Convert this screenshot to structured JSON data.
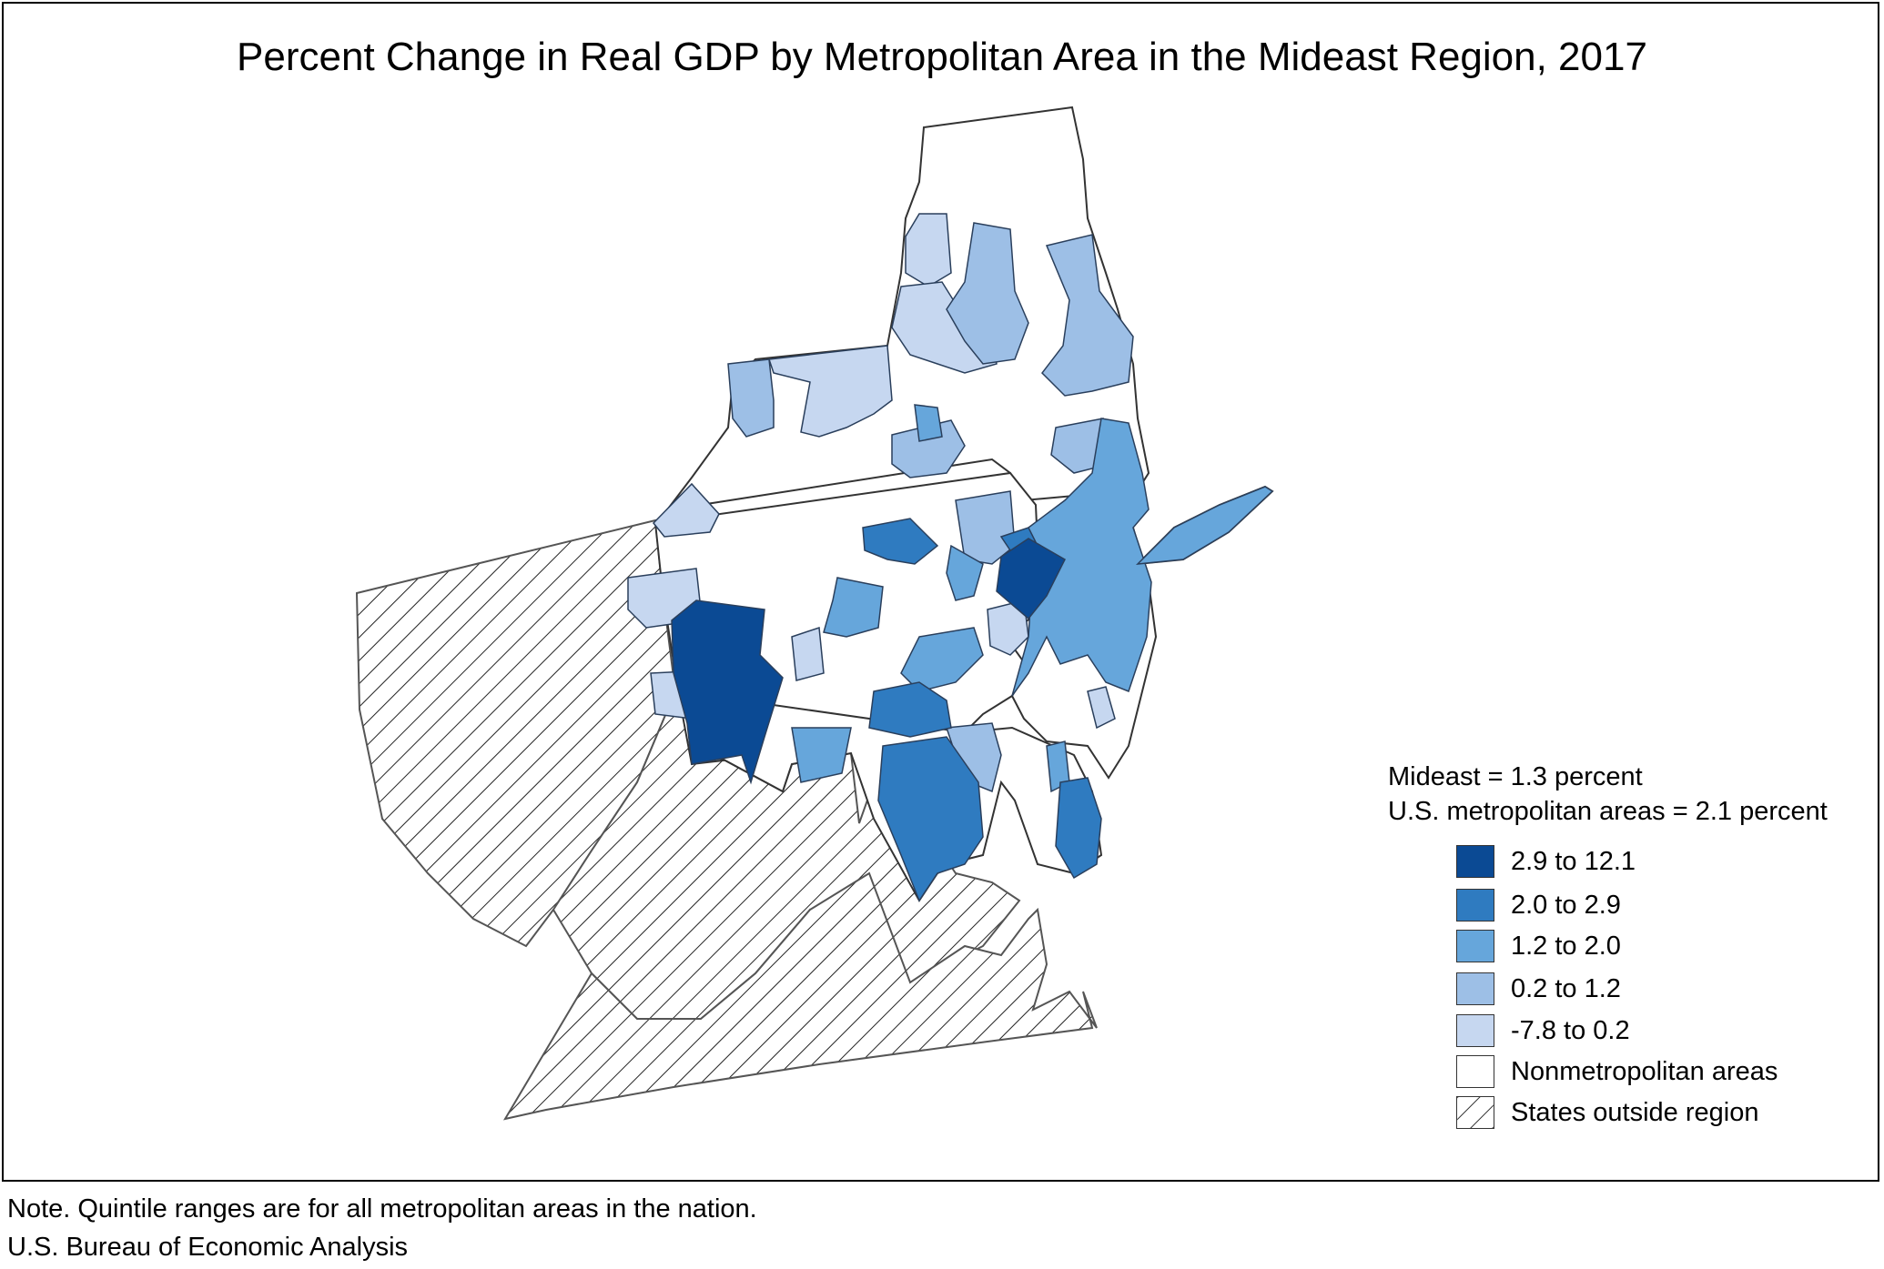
{
  "title": "Percent Change in Real GDP by Metropolitan Area in the Mideast Region, 2017",
  "summary": {
    "mideast": "Mideast = 1.3 percent",
    "us_metro": "U.S. metropolitan areas = 2.1 percent"
  },
  "legend": [
    {
      "label": "2.9 to 12.1",
      "color": "#0b4a94"
    },
    {
      "label": "2.0 to 2.9",
      "color": "#2f7bc0"
    },
    {
      "label": "1.2 to 2.0",
      "color": "#66a6db"
    },
    {
      "label": "0.2 to 1.2",
      "color": "#9dbfe6"
    },
    {
      "label": "-7.8 to 0.2",
      "color": "#c6d7f0"
    },
    {
      "label": "Nonmetropolitan areas",
      "color": "#ffffff"
    },
    {
      "label": "States outside region",
      "color": "hatch"
    }
  ],
  "notes": {
    "note": "Note. Quintile ranges are for all metropolitan areas in the nation.",
    "source": "U.S. Bureau of Economic Analysis"
  }
}
